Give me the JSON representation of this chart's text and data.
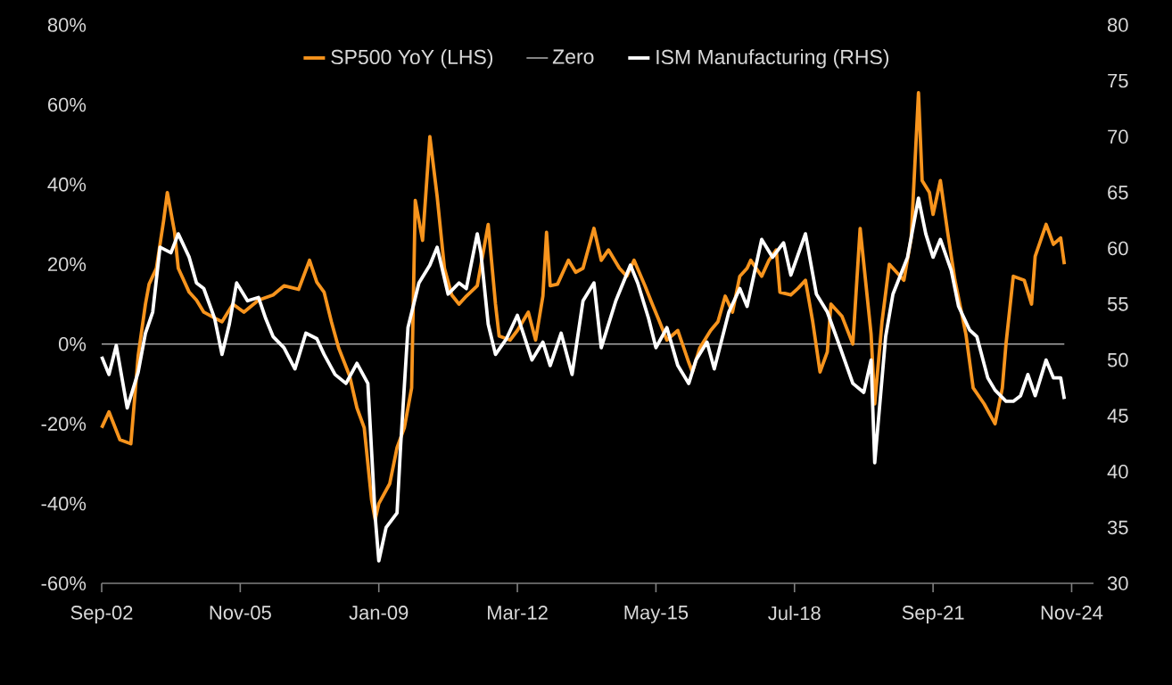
{
  "chart_data": {
    "type": "line",
    "legend": "top",
    "xlim": [
      "2002-09",
      "2025-05"
    ],
    "xticks": [
      {
        "value": "2002-09",
        "label": "Sep-02"
      },
      {
        "value": "2005-11",
        "label": "Nov-05"
      },
      {
        "value": "2009-01",
        "label": "Jan-09"
      },
      {
        "value": "2012-03",
        "label": "Mar-12"
      },
      {
        "value": "2015-05",
        "label": "May-15"
      },
      {
        "value": "2018-07",
        "label": "Jul-18"
      },
      {
        "value": "2021-09",
        "label": "Sep-21"
      },
      {
        "value": "2024-11",
        "label": "Nov-24"
      }
    ],
    "ylim": [
      -60,
      80
    ],
    "yticks": [
      {
        "value": -60,
        "label": "-60%"
      },
      {
        "value": -40,
        "label": "-40%"
      },
      {
        "value": -20,
        "label": "-20%"
      },
      {
        "value": 0,
        "label": "0%"
      },
      {
        "value": 20,
        "label": "20%"
      },
      {
        "value": 40,
        "label": "40%"
      },
      {
        "value": 60,
        "label": "60%"
      },
      {
        "value": 80,
        "label": "80%"
      }
    ],
    "y2lim": [
      30,
      80
    ],
    "y2ticks": [
      30,
      35,
      40,
      45,
      50,
      55,
      60,
      65,
      70,
      75,
      80
    ],
    "ref_lines": [
      {
        "axis": "y",
        "value": 0,
        "label": "Zero",
        "color": "#a6a6a6"
      }
    ],
    "series": [
      {
        "name": "SP500 YoY (LHS)",
        "color": "#f7941d",
        "x": [
          "2002-09",
          "2002-11",
          "2003-02",
          "2003-05",
          "2003-07",
          "2003-09",
          "2003-10",
          "2003-12",
          "2004-02",
          "2004-03",
          "2004-05",
          "2004-06",
          "2004-09",
          "2004-11",
          "2005-01",
          "2005-04",
          "2005-06",
          "2005-09",
          "2005-12",
          "2006-04",
          "2006-08",
          "2006-11",
          "2007-03",
          "2007-06",
          "2007-08",
          "2007-10",
          "2007-12",
          "2008-02",
          "2008-05",
          "2008-07",
          "2008-09",
          "2008-11",
          "2008-12",
          "2009-01",
          "2009-04",
          "2009-06",
          "2009-08",
          "2009-10",
          "2009-11",
          "2010-01",
          "2010-03",
          "2010-05",
          "2010-07",
          "2010-09",
          "2010-11",
          "2011-01",
          "2011-04",
          "2011-07",
          "2011-09",
          "2011-10",
          "2012-01",
          "2012-03",
          "2012-06",
          "2012-08",
          "2012-10",
          "2012-11",
          "2012-12",
          "2013-02",
          "2013-05",
          "2013-07",
          "2013-09",
          "2013-12",
          "2014-02",
          "2014-04",
          "2014-07",
          "2014-09",
          "2014-11",
          "2015-02",
          "2015-04",
          "2015-06",
          "2015-08",
          "2015-11",
          "2016-02",
          "2016-03",
          "2016-05",
          "2016-08",
          "2016-10",
          "2016-12",
          "2017-02",
          "2017-04",
          "2017-06",
          "2017-07",
          "2017-10",
          "2017-12",
          "2018-02",
          "2018-03",
          "2018-06",
          "2018-08",
          "2018-10",
          "2018-12",
          "2019-02",
          "2019-04",
          "2019-05",
          "2019-08",
          "2019-11",
          "2020-01",
          "2020-04",
          "2020-05",
          "2020-07",
          "2020-09",
          "2021-01",
          "2021-03",
          "2021-05",
          "2021-06",
          "2021-08",
          "2021-09",
          "2021-11",
          "2022-01",
          "2022-03",
          "2022-06",
          "2022-08",
          "2022-11",
          "2023-02",
          "2023-04",
          "2023-05",
          "2023-07",
          "2023-10",
          "2023-12",
          "2024-01",
          "2024-04",
          "2024-06",
          "2024-08",
          "2024-09"
        ],
        "values": [
          -21,
          -17,
          -24,
          -25,
          -3,
          10,
          15,
          19,
          31,
          38,
          28,
          19,
          13,
          11,
          8,
          6.5,
          5.6,
          10,
          8,
          11,
          12.3,
          14.6,
          13.7,
          21,
          15.5,
          13,
          5.6,
          -1,
          -8,
          -16,
          -21,
          -39,
          -44,
          -40,
          -35,
          -26,
          -21,
          -11,
          36,
          26,
          52,
          37,
          19,
          12.3,
          10,
          12,
          14.6,
          30,
          10,
          2,
          1,
          3.4,
          8,
          1,
          12,
          28,
          14.6,
          15,
          21,
          18,
          19,
          29,
          21,
          23.6,
          19,
          17,
          21,
          14.6,
          10,
          5.6,
          1,
          3.4,
          -4.6,
          -7,
          -1,
          3.4,
          5.6,
          12,
          8,
          17,
          19,
          21,
          17,
          21,
          23.6,
          13,
          12.3,
          14,
          16,
          5.6,
          -7,
          -2,
          10,
          7,
          0,
          29,
          2.5,
          -15,
          5.6,
          20,
          16,
          26.6,
          63,
          41,
          38,
          32.5,
          41,
          28,
          16,
          2.5,
          -11,
          -15,
          -20,
          -11,
          0,
          17,
          16,
          10,
          22,
          30,
          25,
          26.6,
          20
        ]
      },
      {
        "name": "ISM Manufacturing (RHS)",
        "color": "#ffffff",
        "axis": "y2",
        "x": [
          "2002-09",
          "2002-11",
          "2003-01",
          "2003-04",
          "2003-07",
          "2003-09",
          "2003-11",
          "2004-01",
          "2004-04",
          "2004-06",
          "2004-09",
          "2004-11",
          "2005-01",
          "2005-04",
          "2005-06",
          "2005-08",
          "2005-10",
          "2006-01",
          "2006-04",
          "2006-06",
          "2006-08",
          "2006-11",
          "2007-02",
          "2007-05",
          "2007-08",
          "2007-10",
          "2008-01",
          "2008-04",
          "2008-07",
          "2008-10",
          "2008-12",
          "2009-01",
          "2009-03",
          "2009-06",
          "2009-07",
          "2009-09",
          "2009-12",
          "2010-03",
          "2010-05",
          "2010-08",
          "2010-11",
          "2011-01",
          "2011-04",
          "2011-05",
          "2011-07",
          "2011-09",
          "2011-12",
          "2012-03",
          "2012-07",
          "2012-10",
          "2012-12",
          "2013-03",
          "2013-06",
          "2013-09",
          "2013-12",
          "2014-02",
          "2014-06",
          "2014-10",
          "2014-12",
          "2015-03",
          "2015-05",
          "2015-08",
          "2015-11",
          "2016-02",
          "2016-04",
          "2016-07",
          "2016-09",
          "2017-01",
          "2017-04",
          "2017-06",
          "2017-10",
          "2018-01",
          "2018-04",
          "2018-06",
          "2018-10",
          "2019-01",
          "2019-04",
          "2019-07",
          "2019-11",
          "2020-02",
          "2020-04",
          "2020-05",
          "2020-08",
          "2020-10",
          "2021-02",
          "2021-05",
          "2021-07",
          "2021-09",
          "2021-11",
          "2022-02",
          "2022-04",
          "2022-07",
          "2022-09",
          "2022-12",
          "2023-02",
          "2023-05",
          "2023-07",
          "2023-09",
          "2023-11",
          "2024-01",
          "2024-04",
          "2024-06",
          "2024-08",
          "2024-09"
        ],
        "values": [
          50.3,
          48.7,
          51.3,
          45.7,
          48.9,
          52.4,
          54.3,
          60.1,
          59.6,
          61.3,
          59.2,
          56.9,
          56.4,
          53.7,
          50.5,
          53.2,
          56.9,
          55.3,
          55.6,
          53.7,
          52.1,
          51.1,
          49.2,
          52.4,
          51.9,
          50.5,
          48.7,
          47.9,
          49.7,
          47.9,
          36,
          32,
          35,
          36.3,
          42.4,
          52.9,
          56.9,
          58.5,
          60.1,
          55.9,
          56.9,
          56.4,
          61.3,
          59.6,
          53.2,
          50.5,
          51.9,
          54,
          50,
          51.6,
          49.5,
          52.4,
          48.7,
          55.3,
          56.9,
          51.1,
          55.3,
          58.5,
          56.9,
          53.7,
          51.1,
          52.9,
          49.5,
          47.9,
          50,
          51.6,
          49.2,
          54.3,
          56.4,
          54.8,
          60.8,
          59.2,
          60.5,
          57.6,
          61.3,
          55.9,
          54.3,
          51.6,
          47.9,
          47.1,
          50,
          40.8,
          52.1,
          55.9,
          59.2,
          64.5,
          61.3,
          59.2,
          60.8,
          58,
          54.8,
          52.7,
          52.1,
          48.4,
          47.3,
          46.3,
          46.3,
          46.8,
          48.7,
          46.8,
          50,
          48.4,
          48.4,
          46.5
        ]
      }
    ]
  }
}
